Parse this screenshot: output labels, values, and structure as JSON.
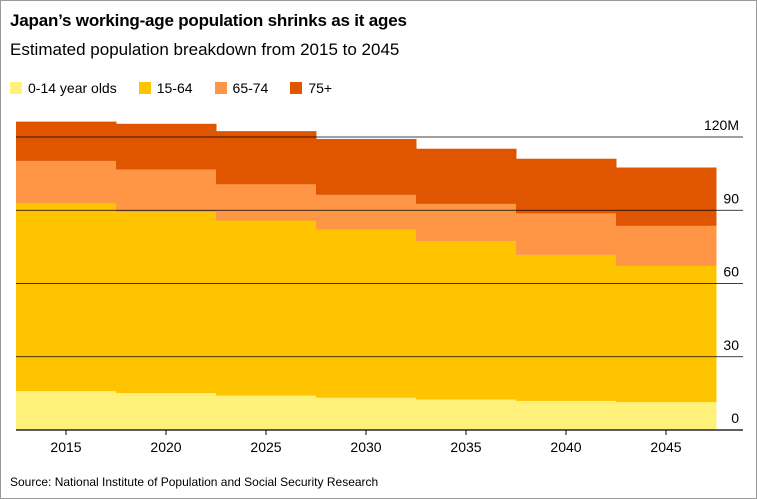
{
  "title": "Japan’s working-age population shrinks as it ages",
  "subtitle": "Estimated population breakdown from 2015 to 2045",
  "source": "Source: National Institute of Population and Social Security Research",
  "chart_data": {
    "type": "area",
    "stacked": true,
    "step": true,
    "categories": [
      "2015",
      "2020",
      "2025",
      "2030",
      "2035",
      "2040",
      "2045"
    ],
    "series": [
      {
        "name": "0-14 year olds",
        "color": "#fff07a",
        "values": [
          15.9,
          15.1,
          14.1,
          13.2,
          12.5,
          11.9,
          11.4
        ]
      },
      {
        "name": "15-64",
        "color": "#ffc400",
        "values": [
          76.8,
          74.1,
          71.7,
          68.8,
          64.9,
          59.8,
          55.8
        ]
      },
      {
        "name": "65-74",
        "color": "#ff9645",
        "values": [
          17.5,
          17.5,
          14.8,
          14.3,
          15.2,
          17.0,
          16.4
        ]
      },
      {
        "name": "75+",
        "color": "#e05500",
        "values": [
          16.1,
          18.7,
          21.8,
          22.9,
          22.6,
          22.4,
          23.9
        ]
      }
    ],
    "ylim": [
      0,
      120
    ],
    "yticks": [
      0,
      30,
      60,
      90,
      120
    ],
    "ytick_labels": [
      "0",
      "30",
      "60",
      "90",
      "120M"
    ],
    "grid": true,
    "legend_position": "top-left"
  }
}
